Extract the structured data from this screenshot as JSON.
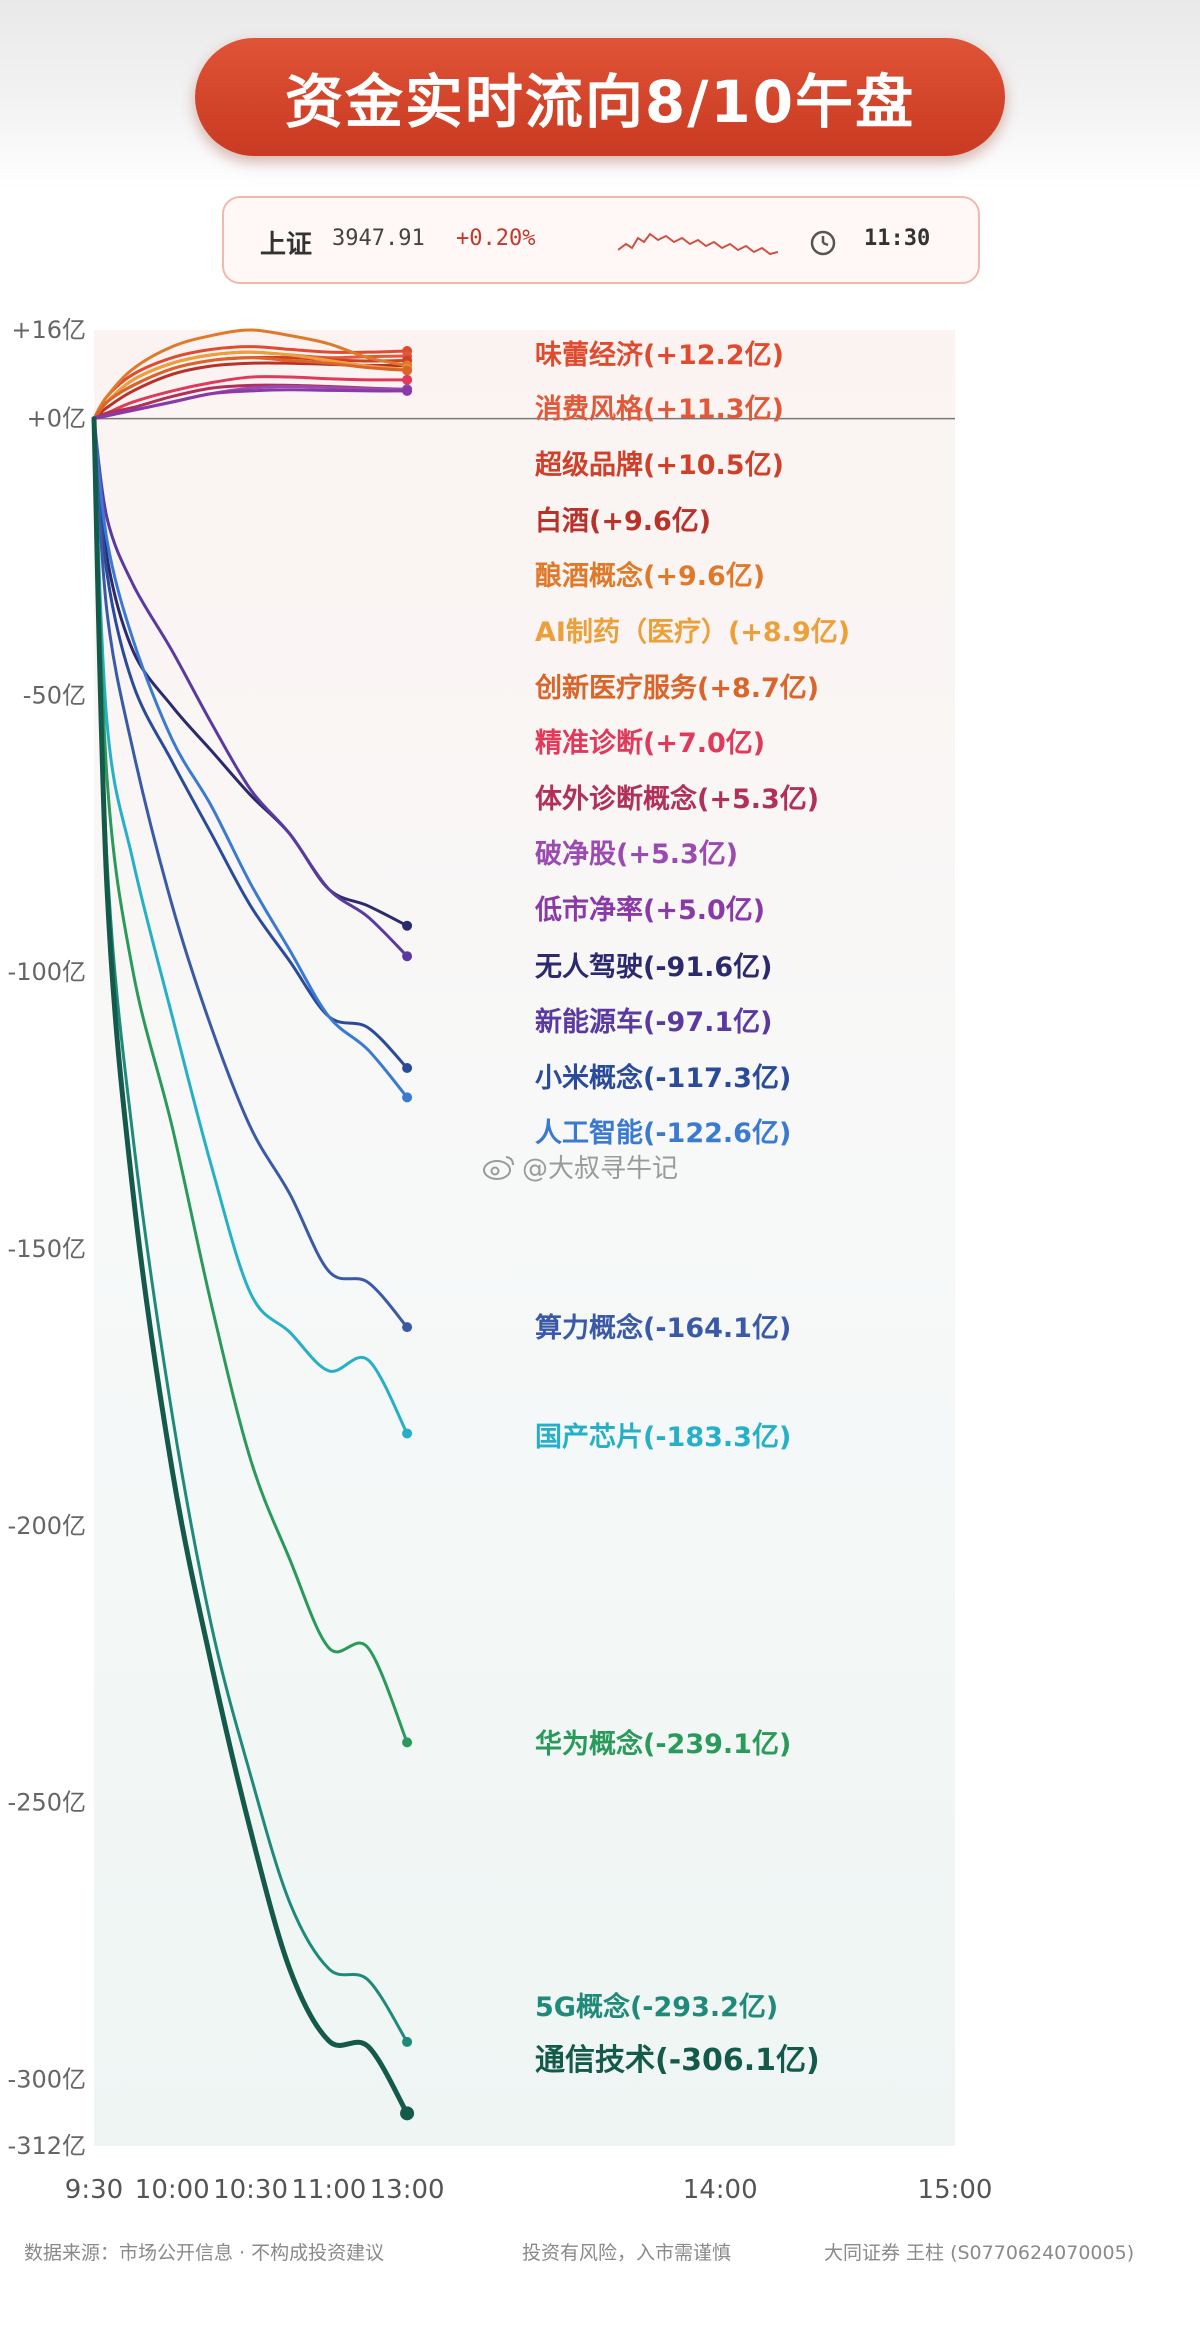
{
  "title": "资金实时流向8/10午盘",
  "ticker": {
    "index_name": "上证",
    "index_value": "3947.91",
    "index_change": "+0.20%",
    "time": "11:30",
    "icon": "clock-icon"
  },
  "watermark": "@大叔寻牛记",
  "footer": {
    "source": "数据来源：市场公开信息 · 不构成投资建议",
    "risk": "投资有风险，入市需谨慎",
    "broker": "大同证券 王柱 (S0770624070005)"
  },
  "chart_data": {
    "type": "line",
    "ylim": [
      -312,
      16
    ],
    "xlim": [
      0,
      330
    ],
    "yticks": [
      {
        "value": 16,
        "label": "+16亿"
      },
      {
        "value": 0,
        "label": "+0亿"
      },
      {
        "value": -50,
        "label": "-50亿"
      },
      {
        "value": -100,
        "label": "-100亿"
      },
      {
        "value": -150,
        "label": "-150亿"
      },
      {
        "value": -200,
        "label": "-200亿"
      },
      {
        "value": -250,
        "label": "-250亿"
      },
      {
        "value": -300,
        "label": "-300亿"
      },
      {
        "value": -312,
        "label": "-312亿"
      }
    ],
    "xticks": [
      {
        "value": 0,
        "label": "9:30"
      },
      {
        "value": 30,
        "label": "10:00"
      },
      {
        "value": 60,
        "label": "10:30"
      },
      {
        "value": 90,
        "label": "11:00"
      },
      {
        "value": 120,
        "label": "13:00"
      },
      {
        "value": 240,
        "label": "14:00"
      },
      {
        "value": 330,
        "label": "15:00"
      }
    ],
    "x": [
      0,
      5,
      15,
      30,
      45,
      60,
      75,
      90,
      105,
      120
    ],
    "series": [
      {
        "name": "味蕾经济",
        "label": "味蕾经济(+12.2亿)",
        "color": "#e04a2f",
        "values": [
          0,
          4,
          8,
          11,
          12.5,
          13,
          12.5,
          12,
          12,
          12.2
        ]
      },
      {
        "name": "消费风格",
        "label": "消费风格(+11.3亿)",
        "color": "#e0593a",
        "values": [
          0,
          3,
          7,
          10,
          11.5,
          12,
          11.5,
          11,
          11.2,
          11.3
        ]
      },
      {
        "name": "超级品牌",
        "label": "超级品牌(+10.5亿)",
        "color": "#cf3f2a",
        "values": [
          0,
          3,
          6,
          9,
          10.5,
          11,
          11,
          10.6,
          10.4,
          10.5
        ]
      },
      {
        "name": "白酒",
        "label": "白酒(+9.6亿)",
        "color": "#b8322a",
        "values": [
          0,
          2,
          5,
          8,
          9.5,
          10,
          10,
          9.8,
          9.6,
          9.6
        ]
      },
      {
        "name": "酿酒概念",
        "label": "酿酒概念(+9.6亿)",
        "color": "#e07a2a",
        "values": [
          0,
          4,
          9,
          13,
          15,
          16,
          15,
          13.5,
          11,
          9.6
        ]
      },
      {
        "name": "AI制药（医疗）",
        "label": "AI制药（医疗）(+8.9亿)",
        "color": "#eca03a",
        "values": [
          0,
          3,
          7,
          10,
          11.5,
          12,
          11.5,
          10.5,
          9.5,
          8.9
        ]
      },
      {
        "name": "创新医疗服务",
        "label": "创新医疗服务(+8.7亿)",
        "color": "#d9652a",
        "values": [
          0,
          3,
          6,
          9,
          10.5,
          11,
          10.5,
          10,
          9.2,
          8.7
        ]
      },
      {
        "name": "精准诊断",
        "label": "精准诊断(+7.0亿)",
        "color": "#e0395a",
        "values": [
          0,
          1,
          3,
          5,
          6.5,
          7.5,
          7.5,
          7.2,
          7,
          7.0
        ]
      },
      {
        "name": "体外诊断概念",
        "label": "体外诊断概念(+5.3亿)",
        "color": "#b0305a",
        "values": [
          0,
          1,
          2,
          4,
          5.5,
          6,
          6,
          5.8,
          5.5,
          5.3
        ]
      },
      {
        "name": "破净股",
        "label": "破净股(+5.3亿)",
        "color": "#9a4ab0",
        "values": [
          0,
          0.5,
          1.5,
          3,
          4.5,
          5.5,
          5.8,
          5.6,
          5.4,
          5.3
        ]
      },
      {
        "name": "低市净率",
        "label": "低市净率(+5.0亿)",
        "color": "#8a3aa8",
        "values": [
          0,
          0.5,
          1.5,
          3,
          4.5,
          5,
          5.2,
          5.1,
          5,
          5.0
        ]
      },
      {
        "name": "无人驾驶",
        "label": "无人驾驶(-91.6亿)",
        "color": "#2c2a6e",
        "values": [
          0,
          -25,
          -42,
          -52,
          -60,
          -68,
          -75,
          -85,
          -88,
          -91.6
        ]
      },
      {
        "name": "新能源车",
        "label": "新能源车(-97.1亿)",
        "color": "#5a3aa0",
        "values": [
          0,
          -18,
          -30,
          -42,
          -55,
          -67,
          -75,
          -85,
          -90,
          -97.1
        ]
      },
      {
        "name": "小米概念",
        "label": "小米概念(-117.3亿)",
        "color": "#2a4a9a",
        "values": [
          0,
          -28,
          -48,
          -62,
          -75,
          -88,
          -98,
          -108,
          -110,
          -117.3
        ]
      },
      {
        "name": "人工智能",
        "label": "人工智能(-122.6亿)",
        "color": "#3a7ad0",
        "values": [
          0,
          -22,
          -40,
          -58,
          -70,
          -84,
          -96,
          -108,
          -114,
          -122.6
        ]
      },
      {
        "name": "算力概念",
        "label": "算力概念(-164.1亿)",
        "color": "#3a5aa8",
        "values": [
          0,
          -35,
          -60,
          -88,
          -110,
          -128,
          -140,
          -154,
          -156,
          -164.1
        ]
      },
      {
        "name": "国产芯片",
        "label": "国产芯片(-183.3亿)",
        "color": "#25b0c8",
        "values": [
          0,
          -55,
          -80,
          -108,
          -135,
          -158,
          -165,
          -172,
          -170,
          -183.3
        ]
      },
      {
        "name": "华为概念",
        "label": "华为概念(-239.1亿)",
        "color": "#2a9a5a",
        "values": [
          0,
          -65,
          -100,
          -128,
          -160,
          -188,
          -206,
          -222,
          -222,
          -239.1
        ]
      },
      {
        "name": "5G概念",
        "label": "5G概念(-293.2亿)",
        "color": "#1f8a7a",
        "values": [
          0,
          -80,
          -130,
          -180,
          -218,
          -245,
          -268,
          -280,
          -282,
          -293.2
        ]
      },
      {
        "name": "通信技术",
        "label": "通信技术(-306.1亿)",
        "color": "#145a4a",
        "values": [
          0,
          -85,
          -140,
          -190,
          -225,
          -255,
          -280,
          -293,
          -294,
          -306.1
        ]
      }
    ]
  }
}
